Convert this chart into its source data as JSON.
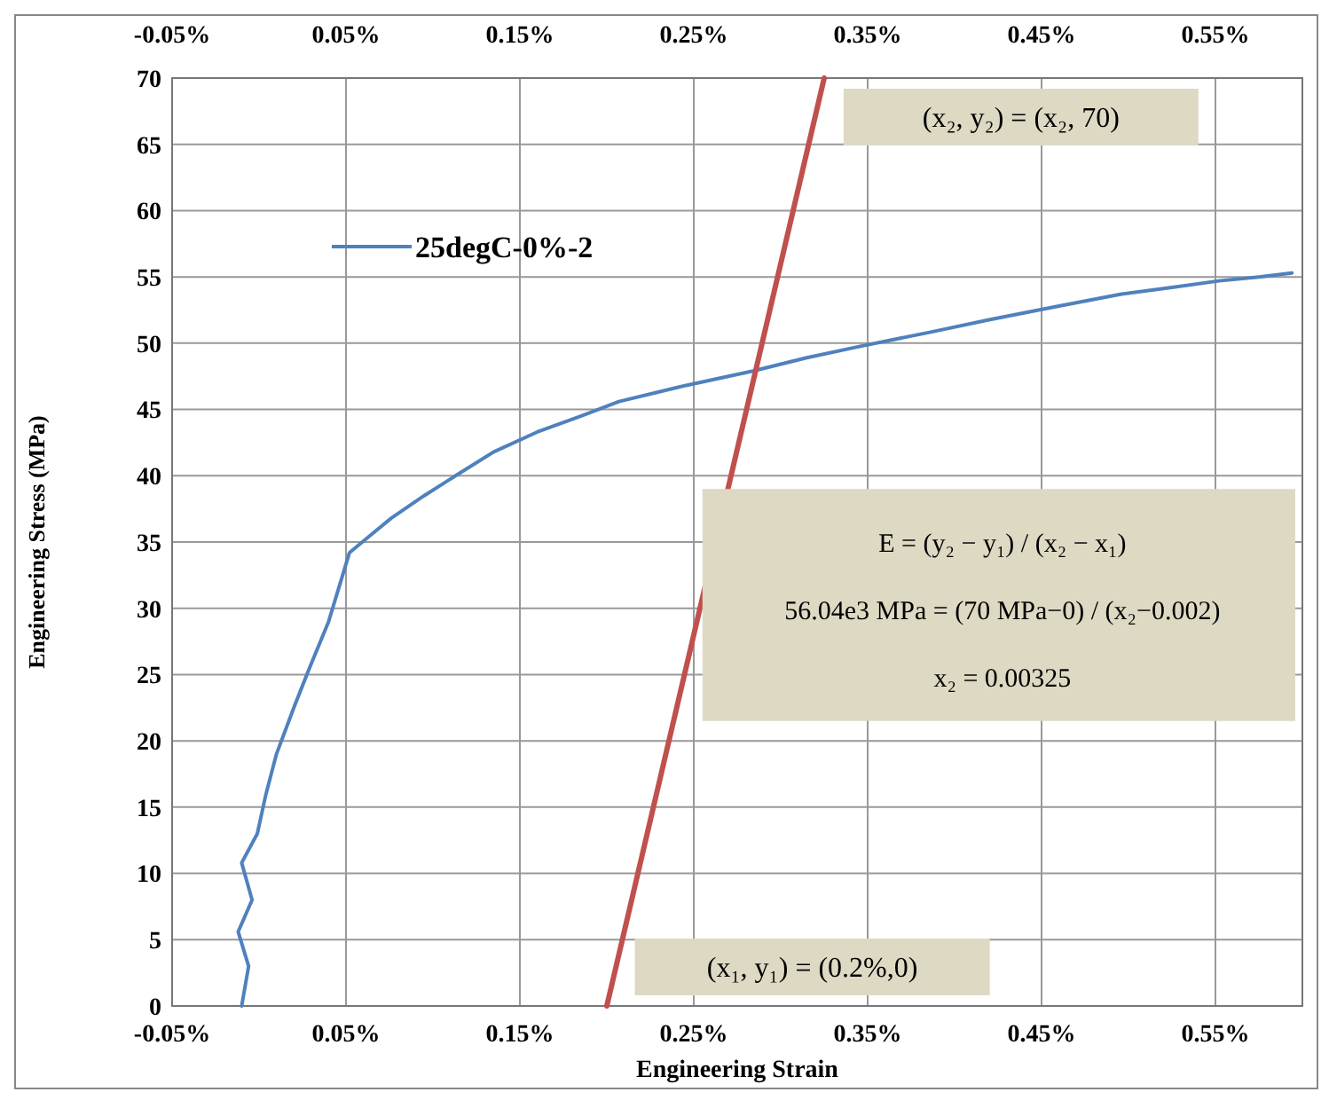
{
  "chart_data": {
    "type": "line",
    "xlabel": "Engineering Strain",
    "ylabel": "Engineering Stress (MPa)",
    "xlim": [
      -0.05,
      0.6
    ],
    "xticks": [
      {
        "value": -0.05,
        "label": "-0.05%"
      },
      {
        "value": 0.05,
        "label": "0.05%"
      },
      {
        "value": 0.15,
        "label": "0.15%"
      },
      {
        "value": 0.25,
        "label": "0.25%"
      },
      {
        "value": 0.35,
        "label": "0.35%"
      },
      {
        "value": 0.45,
        "label": "0.45%"
      },
      {
        "value": 0.55,
        "label": "0.55%"
      }
    ],
    "x2lim": [
      -0.05,
      0.6
    ],
    "x2ticks": [
      {
        "value": -0.05,
        "label": "-0.05%"
      },
      {
        "value": 0.05,
        "label": "0.05%"
      },
      {
        "value": 0.15,
        "label": "0.15%"
      },
      {
        "value": 0.25,
        "label": "0.25%"
      },
      {
        "value": 0.35,
        "label": "0.35%"
      },
      {
        "value": 0.45,
        "label": "0.45%"
      },
      {
        "value": 0.55,
        "label": "0.55%"
      }
    ],
    "ylim": [
      0,
      70
    ],
    "yticks": [
      0,
      5,
      10,
      15,
      20,
      25,
      30,
      35,
      40,
      45,
      50,
      55,
      60,
      65,
      70
    ],
    "grid": true,
    "legend": "top left",
    "marker": "none",
    "line_style": "solid",
    "series": [
      {
        "name": "25degC-0%-2",
        "color": "#4f81bd",
        "x": [
          -0.01,
          -0.006,
          -0.012,
          -0.004,
          -0.01,
          -0.001,
          0.004,
          0.01,
          0.02,
          0.029,
          0.04,
          0.052,
          0.064,
          0.076,
          0.095,
          0.113,
          0.135,
          0.16,
          0.185,
          0.207,
          0.245,
          0.284,
          0.315,
          0.347,
          0.385,
          0.421,
          0.46,
          0.496,
          0.525,
          0.552,
          0.575,
          0.594
        ],
        "values": [
          0,
          3,
          5.6,
          8,
          10.8,
          13,
          16,
          19,
          22.5,
          25.5,
          29,
          34.2,
          35.5,
          36.8,
          38.5,
          40,
          41.8,
          43.3,
          44.5,
          45.6,
          46.8,
          47.9,
          48.9,
          49.8,
          50.8,
          51.8,
          52.8,
          53.7,
          54.2,
          54.7,
          55,
          55.3
        ]
      },
      {
        "color": "#c0504d",
        "x": [
          0.2,
          0.325
        ],
        "values": [
          0,
          70
        ]
      }
    ],
    "annotations": [
      "(x₂, y₂) = (x₂, 70)",
      "(x₁, y₁) = (0.2%,0)",
      "E = (y₂ − y₁) / (x₂ − x₁)",
      "56.04e3 MPa = (70 MPa−0) / (x₂−0.002)",
      "x₂ = 0.00325"
    ]
  }
}
